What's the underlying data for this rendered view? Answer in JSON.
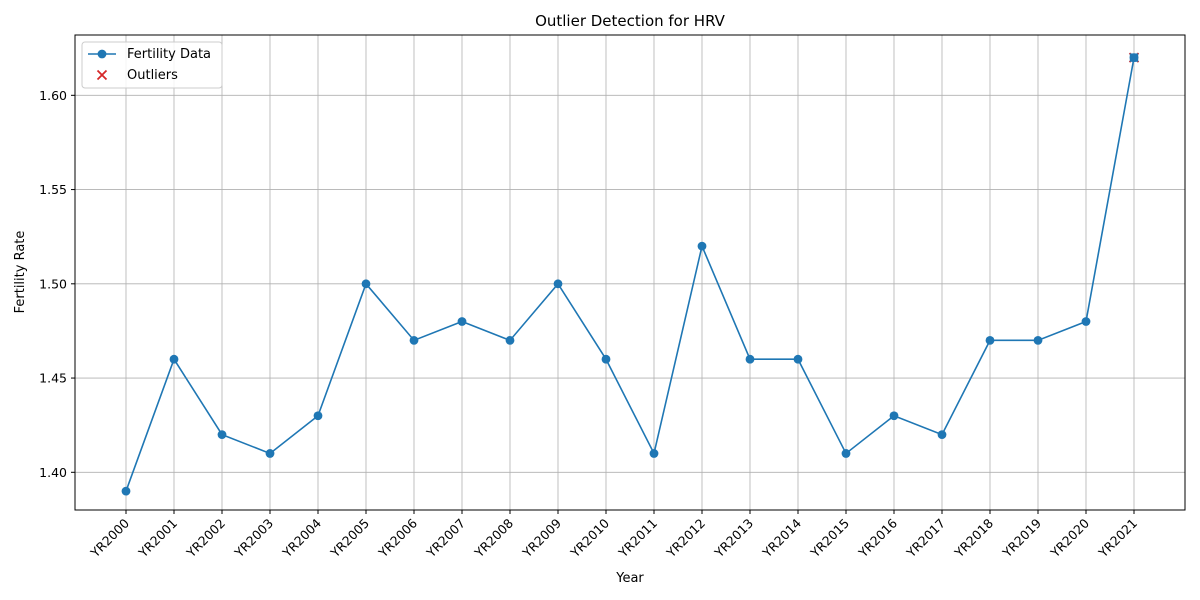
{
  "chart_data": {
    "type": "line",
    "title": "Outlier Detection for HRV",
    "xlabel": "Year",
    "ylabel": "Fertility Rate",
    "categories": [
      "YR2000",
      "YR2001",
      "YR2002",
      "YR2003",
      "YR2004",
      "YR2005",
      "YR2006",
      "YR2007",
      "YR2008",
      "YR2009",
      "YR2010",
      "YR2011",
      "YR2012",
      "YR2013",
      "YR2014",
      "YR2015",
      "YR2016",
      "YR2017",
      "YR2018",
      "YR2019",
      "YR2020",
      "YR2021"
    ],
    "series": [
      {
        "name": "Fertility Data",
        "color": "#1f77b4",
        "marker": "circle",
        "values": [
          1.39,
          1.46,
          1.42,
          1.41,
          1.43,
          1.5,
          1.47,
          1.48,
          1.47,
          1.5,
          1.46,
          1.41,
          1.52,
          1.46,
          1.46,
          1.41,
          1.43,
          1.42,
          1.47,
          1.47,
          1.48,
          1.62
        ]
      },
      {
        "name": "Outliers",
        "color": "#d62728",
        "marker": "x",
        "points": [
          {
            "x": "YR2021",
            "y": 1.62
          }
        ]
      }
    ],
    "ylim": [
      1.38,
      1.632
    ],
    "yticks": [
      "1.40",
      "1.45",
      "1.50",
      "1.55",
      "1.60"
    ],
    "grid": true,
    "legend_position": "top-left"
  }
}
